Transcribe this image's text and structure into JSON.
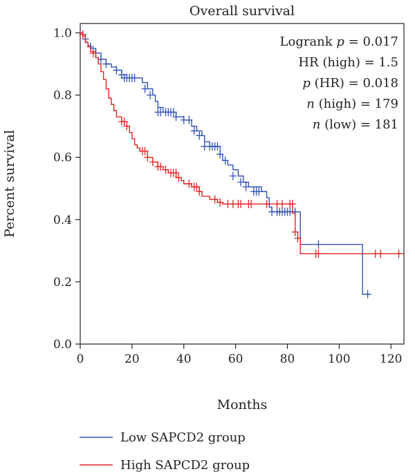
{
  "chart_data": {
    "type": "line",
    "title": "Overall survival",
    "xlabel": "Months",
    "ylabel": "Percent survival",
    "xlim": [
      0,
      125
    ],
    "ylim": [
      0,
      1.03
    ],
    "xticks": [
      "0",
      "20",
      "40",
      "60",
      "80",
      "100",
      "120"
    ],
    "yticks": [
      "0.0",
      "0.2",
      "0.4",
      "0.6",
      "0.8",
      "1.0"
    ],
    "grid": false,
    "legend_position": "bottom",
    "annotations": [
      {
        "prefix": "Logrank ",
        "italic": "p",
        "suffix": " = 0.017"
      },
      {
        "prefix": "HR (high) = 1.5",
        "italic": "",
        "suffix": ""
      },
      {
        "prefix": "",
        "italic": "p",
        "suffix": " (HR) = 0.018"
      },
      {
        "prefix": "",
        "italic": "n",
        "suffix": " (high) = 179"
      },
      {
        "prefix": "",
        "italic": "n",
        "suffix": " (low) = 181"
      }
    ],
    "series": [
      {
        "name": "Low SAPCD2 group",
        "color": "#3050b8",
        "steps": [
          [
            0,
            1.0
          ],
          [
            1,
            0.99
          ],
          [
            2,
            0.97
          ],
          [
            3,
            0.96
          ],
          [
            4,
            0.95
          ],
          [
            6,
            0.935
          ],
          [
            8,
            0.915
          ],
          [
            10,
            0.9
          ],
          [
            12,
            0.89
          ],
          [
            14,
            0.88
          ],
          [
            16,
            0.865
          ],
          [
            18,
            0.855
          ],
          [
            24,
            0.84
          ],
          [
            26,
            0.82
          ],
          [
            28,
            0.8
          ],
          [
            29,
            0.78
          ],
          [
            30,
            0.76
          ],
          [
            32,
            0.745
          ],
          [
            37,
            0.73
          ],
          [
            40,
            0.72
          ],
          [
            43,
            0.7
          ],
          [
            45,
            0.685
          ],
          [
            47,
            0.67
          ],
          [
            48,
            0.65
          ],
          [
            50,
            0.635
          ],
          [
            54,
            0.61
          ],
          [
            55,
            0.59
          ],
          [
            57,
            0.575
          ],
          [
            59,
            0.56
          ],
          [
            61,
            0.54
          ],
          [
            63,
            0.52
          ],
          [
            65,
            0.505
          ],
          [
            70,
            0.49
          ],
          [
            72,
            0.47
          ],
          [
            73,
            0.44
          ],
          [
            74,
            0.425
          ],
          [
            85,
            0.32
          ],
          [
            109,
            0.16
          ],
          [
            112,
            0.16
          ]
        ],
        "censor_marks": [
          [
            2,
            0.98
          ],
          [
            4,
            0.955
          ],
          [
            6,
            0.935
          ],
          [
            8,
            0.915
          ],
          [
            10,
            0.9
          ],
          [
            14,
            0.88
          ],
          [
            16,
            0.865
          ],
          [
            17,
            0.855
          ],
          [
            18,
            0.855
          ],
          [
            19,
            0.855
          ],
          [
            20,
            0.855
          ],
          [
            21,
            0.855
          ],
          [
            25,
            0.82
          ],
          [
            27,
            0.8
          ],
          [
            30,
            0.745
          ],
          [
            31,
            0.745
          ],
          [
            33,
            0.745
          ],
          [
            34,
            0.745
          ],
          [
            35,
            0.745
          ],
          [
            36,
            0.745
          ],
          [
            37,
            0.73
          ],
          [
            40,
            0.72
          ],
          [
            42,
            0.72
          ],
          [
            44,
            0.685
          ],
          [
            46,
            0.67
          ],
          [
            48,
            0.635
          ],
          [
            50,
            0.635
          ],
          [
            51,
            0.635
          ],
          [
            52,
            0.635
          ],
          [
            53,
            0.635
          ],
          [
            54,
            0.61
          ],
          [
            56,
            0.59
          ],
          [
            59,
            0.54
          ],
          [
            62,
            0.52
          ],
          [
            64,
            0.505
          ],
          [
            67,
            0.49
          ],
          [
            68,
            0.49
          ],
          [
            69,
            0.49
          ],
          [
            74,
            0.425
          ],
          [
            76,
            0.425
          ],
          [
            77,
            0.425
          ],
          [
            78,
            0.425
          ],
          [
            79,
            0.425
          ],
          [
            80,
            0.425
          ],
          [
            81,
            0.425
          ],
          [
            83,
            0.425
          ],
          [
            92,
            0.32
          ],
          [
            111,
            0.16
          ]
        ]
      },
      {
        "name": "High SAPCD2 group",
        "color": "#e02424",
        "steps": [
          [
            0,
            1.0
          ],
          [
            1,
            0.99
          ],
          [
            2,
            0.97
          ],
          [
            3,
            0.955
          ],
          [
            4,
            0.94
          ],
          [
            6,
            0.92
          ],
          [
            7,
            0.9
          ],
          [
            8,
            0.875
          ],
          [
            9,
            0.85
          ],
          [
            10,
            0.82
          ],
          [
            11,
            0.79
          ],
          [
            12,
            0.77
          ],
          [
            13,
            0.75
          ],
          [
            14,
            0.73
          ],
          [
            16,
            0.715
          ],
          [
            18,
            0.7
          ],
          [
            19,
            0.68
          ],
          [
            20,
            0.66
          ],
          [
            21,
            0.64
          ],
          [
            22,
            0.63
          ],
          [
            23,
            0.62
          ],
          [
            26,
            0.6
          ],
          [
            28,
            0.585
          ],
          [
            30,
            0.57
          ],
          [
            32,
            0.56
          ],
          [
            34,
            0.55
          ],
          [
            37,
            0.535
          ],
          [
            39,
            0.525
          ],
          [
            40,
            0.515
          ],
          [
            43,
            0.505
          ],
          [
            46,
            0.49
          ],
          [
            47,
            0.475
          ],
          [
            50,
            0.465
          ],
          [
            53,
            0.455
          ],
          [
            55,
            0.45
          ],
          [
            82,
            0.42
          ],
          [
            83,
            0.36
          ],
          [
            84,
            0.34
          ],
          [
            85,
            0.29
          ],
          [
            125,
            0.29
          ]
        ],
        "censor_marks": [
          [
            1,
            0.995
          ],
          [
            5,
            0.935
          ],
          [
            16,
            0.715
          ],
          [
            17,
            0.715
          ],
          [
            18,
            0.7
          ],
          [
            24,
            0.62
          ],
          [
            25,
            0.62
          ],
          [
            26,
            0.6
          ],
          [
            28,
            0.585
          ],
          [
            30,
            0.57
          ],
          [
            31,
            0.57
          ],
          [
            33,
            0.56
          ],
          [
            35,
            0.55
          ],
          [
            36,
            0.55
          ],
          [
            37,
            0.55
          ],
          [
            38,
            0.535
          ],
          [
            42,
            0.515
          ],
          [
            44,
            0.505
          ],
          [
            45,
            0.505
          ],
          [
            46,
            0.49
          ],
          [
            52,
            0.465
          ],
          [
            54,
            0.455
          ],
          [
            57,
            0.45
          ],
          [
            59,
            0.45
          ],
          [
            61,
            0.45
          ],
          [
            62,
            0.45
          ],
          [
            65,
            0.45
          ],
          [
            66,
            0.45
          ],
          [
            72,
            0.45
          ],
          [
            76,
            0.45
          ],
          [
            78,
            0.45
          ],
          [
            81,
            0.45
          ],
          [
            82,
            0.45
          ],
          [
            83,
            0.36
          ],
          [
            84,
            0.34
          ],
          [
            91,
            0.29
          ],
          [
            92,
            0.29
          ],
          [
            114,
            0.29
          ],
          [
            116,
            0.29
          ],
          [
            123,
            0.29
          ]
        ]
      }
    ]
  }
}
